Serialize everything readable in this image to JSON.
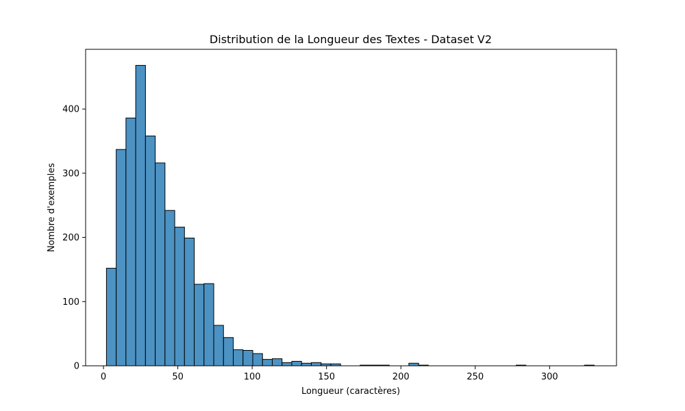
{
  "chart_data": {
    "type": "bar",
    "title": "Distribution de la Longueur des Textes - Dataset V2",
    "xlabel": "Longueur (caractères)",
    "ylabel": "Nombre d'exemples",
    "xlim": [
      -12,
      345
    ],
    "ylim": [
      0,
      493
    ],
    "x_ticks": [
      0,
      50,
      100,
      150,
      200,
      250,
      300
    ],
    "y_ticks": [
      0,
      100,
      200,
      300,
      400
    ],
    "grid": false,
    "bar_color": "#4c92c3",
    "bar_edge_color": "#000000",
    "bin_start": 2,
    "bin_width": 6.56,
    "counts": [
      152,
      337,
      386,
      468,
      358,
      316,
      242,
      216,
      199,
      127,
      128,
      63,
      44,
      25,
      24,
      19,
      10,
      11,
      5,
      7,
      4,
      5,
      3,
      3,
      0,
      0,
      1,
      1,
      1,
      0,
      0,
      4,
      1,
      0,
      0,
      0,
      0,
      0,
      0,
      0,
      0,
      0,
      1,
      0,
      0,
      0,
      0,
      0,
      0,
      1
    ]
  }
}
